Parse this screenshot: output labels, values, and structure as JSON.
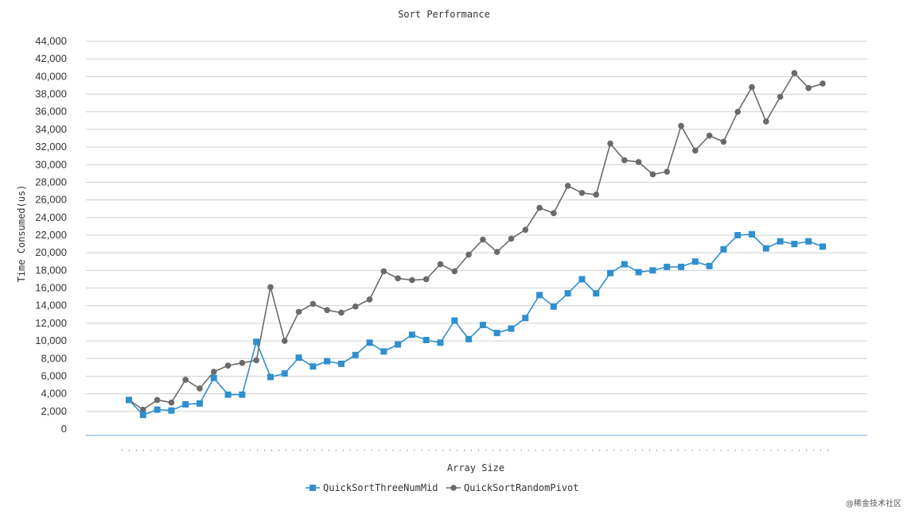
{
  "watermark": "@稀金技术社区",
  "chart_data": {
    "type": "line",
    "title": "Sort Performance",
    "xlabel": "Array Size",
    "ylabel": "Time Consumed(us)",
    "ylim": [
      0,
      44000
    ],
    "yticks": [
      0,
      2000,
      4000,
      6000,
      8000,
      10000,
      12000,
      14000,
      16000,
      18000,
      20000,
      22000,
      24000,
      26000,
      28000,
      30000,
      32000,
      34000,
      36000,
      38000,
      40000,
      42000,
      44000
    ],
    "ytick_labels": [
      "0",
      "2,000",
      "4,000",
      "6,000",
      "8,000",
      "10,000",
      "12,000",
      "14,000",
      "16,000",
      "18,000",
      "20,000",
      "22,000",
      "24,000",
      "26,000",
      "28,000",
      "30,000",
      "32,000",
      "34,000",
      "36,000",
      "38,000",
      "40,000",
      "42,000",
      "44,000"
    ],
    "grid": true,
    "legend_position": "bottom",
    "series": [
      {
        "name": "QuickSortThreeNumMid",
        "color": "#2f8fcf",
        "marker": "square",
        "values": [
          3300,
          1600,
          2200,
          2100,
          2800,
          2900,
          5800,
          3900,
          3900,
          9900,
          5900,
          6300,
          8100,
          7100,
          7700,
          7400,
          8400,
          9800,
          8800,
          9600,
          10700,
          10100,
          9800,
          12300,
          10200,
          11800,
          10900,
          11400,
          12600,
          15200,
          13900,
          15400,
          17000,
          15400,
          17700,
          18700,
          17800,
          18000,
          18400,
          18400,
          19000,
          18500,
          20400,
          22000,
          22100,
          20500,
          21300,
          21000,
          21300,
          20700
        ]
      },
      {
        "name": "QuickSortRandomPivot",
        "color": "#6a6a6a",
        "marker": "circle",
        "values": [
          3300,
          2200,
          3300,
          3000,
          5600,
          4600,
          6500,
          7200,
          7500,
          7800,
          16100,
          10000,
          13300,
          14200,
          13500,
          13200,
          13900,
          14700,
          17900,
          17100,
          16900,
          17000,
          18700,
          17900,
          19800,
          21500,
          20100,
          21600,
          22600,
          25100,
          24500,
          27600,
          26800,
          26600,
          32400,
          30500,
          30300,
          28900,
          29200,
          34400,
          31600,
          33300,
          32600,
          36000,
          38800,
          34900,
          37700,
          40400,
          38700,
          39200
        ]
      }
    ]
  }
}
